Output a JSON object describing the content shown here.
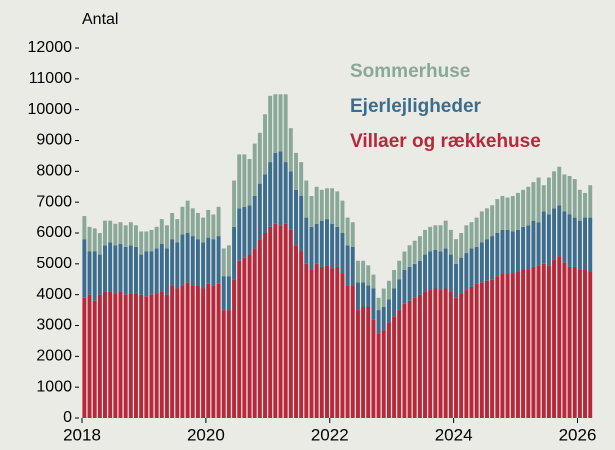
{
  "chart_data": {
    "type": "stacked_bar",
    "ylabel": "Antal",
    "x": [
      2018,
      2018.083,
      2018.167,
      2018.25,
      2018.333,
      2018.417,
      2018.5,
      2018.583,
      2018.667,
      2018.75,
      2018.833,
      2018.917,
      2019,
      2019.083,
      2019.167,
      2019.25,
      2019.333,
      2019.417,
      2019.5,
      2019.583,
      2019.667,
      2019.75,
      2019.833,
      2019.917,
      2020,
      2020.083,
      2020.167,
      2020.25,
      2020.333,
      2020.417,
      2020.5,
      2020.583,
      2020.667,
      2020.75,
      2020.833,
      2020.917,
      2021,
      2021.083,
      2021.167,
      2021.25,
      2021.333,
      2021.417,
      2021.5,
      2021.583,
      2021.667,
      2021.75,
      2021.833,
      2021.917,
      2022,
      2022.083,
      2022.167,
      2022.25,
      2022.333,
      2022.417,
      2022.5,
      2022.583,
      2022.667,
      2022.75,
      2022.833,
      2022.917,
      2023,
      2023.083,
      2023.167,
      2023.25,
      2023.333,
      2023.417,
      2023.5,
      2023.583,
      2023.667,
      2023.75,
      2023.833,
      2023.917,
      2024,
      2024.083,
      2024.167,
      2024.25,
      2024.333,
      2024.417,
      2024.5,
      2024.583,
      2024.667,
      2024.75,
      2024.833,
      2024.917,
      2025,
      2025.083,
      2025.167,
      2025.25,
      2025.333,
      2025.417,
      2025.5,
      2025.583,
      2025.667,
      2025.75,
      2025.833,
      2025.917,
      2026,
      2026.083,
      2026.167
    ],
    "series": [
      {
        "name": "Villaer og rækkehuse",
        "color": "#b8283b",
        "values": [
          3900,
          4000,
          3800,
          4000,
          4100,
          4100,
          4050,
          4100,
          4000,
          4050,
          4050,
          4000,
          3950,
          4000,
          4050,
          4100,
          4000,
          4300,
          4200,
          4300,
          4400,
          4300,
          4300,
          4200,
          4350,
          4300,
          4350,
          3500,
          3500,
          4500,
          5100,
          5200,
          5300,
          5500,
          5800,
          6000,
          6200,
          6300,
          6250,
          6300,
          6100,
          5600,
          5400,
          5000,
          4800,
          5000,
          4900,
          4950,
          4850,
          4900,
          4700,
          4300,
          4300,
          3500,
          3600,
          3600,
          3200,
          2750,
          2850,
          3100,
          3300,
          3500,
          3700,
          3800,
          3900,
          4000,
          4100,
          4150,
          4200,
          4150,
          4200,
          4100,
          3900,
          4050,
          4150,
          4250,
          4350,
          4400,
          4450,
          4500,
          4600,
          4700,
          4700,
          4700,
          4750,
          4800,
          4800,
          4900,
          4950,
          5000,
          4950,
          5150,
          5250,
          5050,
          4900,
          4900,
          4800,
          4800,
          4750
        ]
      },
      {
        "name": "Ejerlejligheder",
        "color": "#3c6d8e",
        "values": [
          1900,
          1400,
          1600,
          1300,
          1500,
          1600,
          1550,
          1550,
          1550,
          1550,
          1500,
          1300,
          1450,
          1400,
          1450,
          1550,
          1500,
          1500,
          1500,
          1650,
          1600,
          1600,
          1500,
          1500,
          1500,
          1500,
          1550,
          1100,
          1100,
          1700,
          1700,
          1650,
          1600,
          1700,
          1800,
          1900,
          2100,
          2300,
          2400,
          2000,
          1900,
          1800,
          1800,
          1500,
          1400,
          1300,
          1500,
          1500,
          1450,
          1300,
          1300,
          1300,
          1250,
          900,
          800,
          700,
          1000,
          750,
          750,
          750,
          900,
          1000,
          1100,
          1100,
          1100,
          1100,
          1200,
          1250,
          1250,
          1250,
          1300,
          1200,
          1100,
          1150,
          1200,
          1250,
          1200,
          1300,
          1350,
          1400,
          1400,
          1400,
          1400,
          1350,
          1350,
          1400,
          1450,
          1500,
          1400,
          1700,
          1650,
          1650,
          1650,
          1650,
          1700,
          1600,
          1600,
          1700,
          1750
        ]
      },
      {
        "name": "Sommerhuse",
        "color": "#8aa898",
        "values": [
          750,
          800,
          750,
          700,
          800,
          700,
          700,
          700,
          700,
          750,
          700,
          750,
          650,
          700,
          700,
          800,
          750,
          850,
          750,
          900,
          1050,
          900,
          850,
          800,
          900,
          800,
          950,
          900,
          1000,
          1500,
          1750,
          1700,
          1500,
          1700,
          1650,
          1950,
          2150,
          1900,
          1850,
          2200,
          1400,
          1200,
          1100,
          1200,
          1000,
          1200,
          1000,
          1000,
          1150,
          1150,
          1050,
          900,
          800,
          700,
          700,
          650,
          450,
          400,
          600,
          600,
          600,
          600,
          600,
          700,
          750,
          800,
          800,
          800,
          800,
          850,
          900,
          800,
          800,
          800,
          900,
          850,
          950,
          1000,
          1000,
          1000,
          1100,
          1100,
          1050,
          1150,
          1200,
          1200,
          1250,
          1250,
          1450,
          850,
          1200,
          1200,
          1250,
          1200,
          1250,
          1250,
          1000,
          800,
          1050
        ]
      }
    ],
    "xlim": [
      2018,
      2026.25
    ],
    "xticks": [
      2018,
      2020,
      2022,
      2024,
      2026
    ],
    "ylim": [
      0,
      12000
    ],
    "yticks": [
      0,
      1000,
      2000,
      3000,
      4000,
      5000,
      6000,
      7000,
      8000,
      9000,
      10000,
      11000,
      12000
    ],
    "legend": "upper right"
  }
}
